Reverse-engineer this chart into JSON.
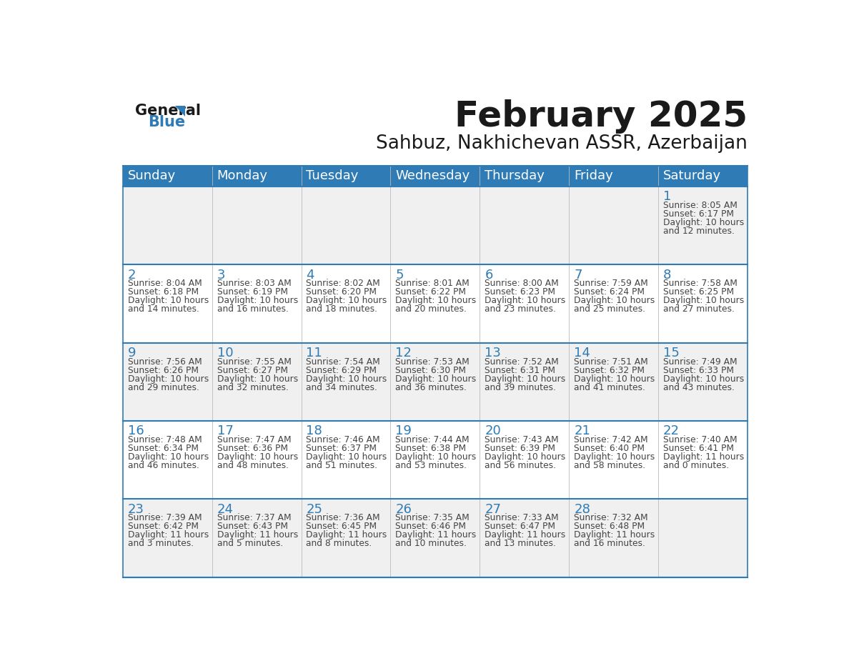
{
  "title": "February 2025",
  "subtitle": "Sahbuz, Nakhichevan ASSR, Azerbaijan",
  "header_bg_color": "#2E7BB5",
  "header_text_color": "#FFFFFF",
  "cell_bg_color": "#FFFFFF",
  "alt_cell_bg_color": "#F0F0F0",
  "day_number_color": "#2E7BB5",
  "text_color": "#444444",
  "border_color": "#2E7BB5",
  "days_of_week": [
    "Sunday",
    "Monday",
    "Tuesday",
    "Wednesday",
    "Thursday",
    "Friday",
    "Saturday"
  ],
  "calendar_data": [
    [
      {
        "day": null,
        "sunrise": null,
        "sunset": null,
        "daylight_line1": null,
        "daylight_line2": null
      },
      {
        "day": null,
        "sunrise": null,
        "sunset": null,
        "daylight_line1": null,
        "daylight_line2": null
      },
      {
        "day": null,
        "sunrise": null,
        "sunset": null,
        "daylight_line1": null,
        "daylight_line2": null
      },
      {
        "day": null,
        "sunrise": null,
        "sunset": null,
        "daylight_line1": null,
        "daylight_line2": null
      },
      {
        "day": null,
        "sunrise": null,
        "sunset": null,
        "daylight_line1": null,
        "daylight_line2": null
      },
      {
        "day": null,
        "sunrise": null,
        "sunset": null,
        "daylight_line1": null,
        "daylight_line2": null
      },
      {
        "day": 1,
        "sunrise": "8:05 AM",
        "sunset": "6:17 PM",
        "daylight_line1": "Daylight: 10 hours",
        "daylight_line2": "and 12 minutes."
      }
    ],
    [
      {
        "day": 2,
        "sunrise": "8:04 AM",
        "sunset": "6:18 PM",
        "daylight_line1": "Daylight: 10 hours",
        "daylight_line2": "and 14 minutes."
      },
      {
        "day": 3,
        "sunrise": "8:03 AM",
        "sunset": "6:19 PM",
        "daylight_line1": "Daylight: 10 hours",
        "daylight_line2": "and 16 minutes."
      },
      {
        "day": 4,
        "sunrise": "8:02 AM",
        "sunset": "6:20 PM",
        "daylight_line1": "Daylight: 10 hours",
        "daylight_line2": "and 18 minutes."
      },
      {
        "day": 5,
        "sunrise": "8:01 AM",
        "sunset": "6:22 PM",
        "daylight_line1": "Daylight: 10 hours",
        "daylight_line2": "and 20 minutes."
      },
      {
        "day": 6,
        "sunrise": "8:00 AM",
        "sunset": "6:23 PM",
        "daylight_line1": "Daylight: 10 hours",
        "daylight_line2": "and 23 minutes."
      },
      {
        "day": 7,
        "sunrise": "7:59 AM",
        "sunset": "6:24 PM",
        "daylight_line1": "Daylight: 10 hours",
        "daylight_line2": "and 25 minutes."
      },
      {
        "day": 8,
        "sunrise": "7:58 AM",
        "sunset": "6:25 PM",
        "daylight_line1": "Daylight: 10 hours",
        "daylight_line2": "and 27 minutes."
      }
    ],
    [
      {
        "day": 9,
        "sunrise": "7:56 AM",
        "sunset": "6:26 PM",
        "daylight_line1": "Daylight: 10 hours",
        "daylight_line2": "and 29 minutes."
      },
      {
        "day": 10,
        "sunrise": "7:55 AM",
        "sunset": "6:27 PM",
        "daylight_line1": "Daylight: 10 hours",
        "daylight_line2": "and 32 minutes."
      },
      {
        "day": 11,
        "sunrise": "7:54 AM",
        "sunset": "6:29 PM",
        "daylight_line1": "Daylight: 10 hours",
        "daylight_line2": "and 34 minutes."
      },
      {
        "day": 12,
        "sunrise": "7:53 AM",
        "sunset": "6:30 PM",
        "daylight_line1": "Daylight: 10 hours",
        "daylight_line2": "and 36 minutes."
      },
      {
        "day": 13,
        "sunrise": "7:52 AM",
        "sunset": "6:31 PM",
        "daylight_line1": "Daylight: 10 hours",
        "daylight_line2": "and 39 minutes."
      },
      {
        "day": 14,
        "sunrise": "7:51 AM",
        "sunset": "6:32 PM",
        "daylight_line1": "Daylight: 10 hours",
        "daylight_line2": "and 41 minutes."
      },
      {
        "day": 15,
        "sunrise": "7:49 AM",
        "sunset": "6:33 PM",
        "daylight_line1": "Daylight: 10 hours",
        "daylight_line2": "and 43 minutes."
      }
    ],
    [
      {
        "day": 16,
        "sunrise": "7:48 AM",
        "sunset": "6:34 PM",
        "daylight_line1": "Daylight: 10 hours",
        "daylight_line2": "and 46 minutes."
      },
      {
        "day": 17,
        "sunrise": "7:47 AM",
        "sunset": "6:36 PM",
        "daylight_line1": "Daylight: 10 hours",
        "daylight_line2": "and 48 minutes."
      },
      {
        "day": 18,
        "sunrise": "7:46 AM",
        "sunset": "6:37 PM",
        "daylight_line1": "Daylight: 10 hours",
        "daylight_line2": "and 51 minutes."
      },
      {
        "day": 19,
        "sunrise": "7:44 AM",
        "sunset": "6:38 PM",
        "daylight_line1": "Daylight: 10 hours",
        "daylight_line2": "and 53 minutes."
      },
      {
        "day": 20,
        "sunrise": "7:43 AM",
        "sunset": "6:39 PM",
        "daylight_line1": "Daylight: 10 hours",
        "daylight_line2": "and 56 minutes."
      },
      {
        "day": 21,
        "sunrise": "7:42 AM",
        "sunset": "6:40 PM",
        "daylight_line1": "Daylight: 10 hours",
        "daylight_line2": "and 58 minutes."
      },
      {
        "day": 22,
        "sunrise": "7:40 AM",
        "sunset": "6:41 PM",
        "daylight_line1": "Daylight: 11 hours",
        "daylight_line2": "and 0 minutes."
      }
    ],
    [
      {
        "day": 23,
        "sunrise": "7:39 AM",
        "sunset": "6:42 PM",
        "daylight_line1": "Daylight: 11 hours",
        "daylight_line2": "and 3 minutes."
      },
      {
        "day": 24,
        "sunrise": "7:37 AM",
        "sunset": "6:43 PM",
        "daylight_line1": "Daylight: 11 hours",
        "daylight_line2": "and 5 minutes."
      },
      {
        "day": 25,
        "sunrise": "7:36 AM",
        "sunset": "6:45 PM",
        "daylight_line1": "Daylight: 11 hours",
        "daylight_line2": "and 8 minutes."
      },
      {
        "day": 26,
        "sunrise": "7:35 AM",
        "sunset": "6:46 PM",
        "daylight_line1": "Daylight: 11 hours",
        "daylight_line2": "and 10 minutes."
      },
      {
        "day": 27,
        "sunrise": "7:33 AM",
        "sunset": "6:47 PM",
        "daylight_line1": "Daylight: 11 hours",
        "daylight_line2": "and 13 minutes."
      },
      {
        "day": 28,
        "sunrise": "7:32 AM",
        "sunset": "6:48 PM",
        "daylight_line1": "Daylight: 11 hours",
        "daylight_line2": "and 16 minutes."
      },
      {
        "day": null,
        "sunrise": null,
        "sunset": null,
        "daylight_line1": null,
        "daylight_line2": null
      }
    ]
  ],
  "logo_text_general": "General",
  "logo_text_blue": "Blue",
  "logo_color_general": "#1a1a1a",
  "logo_color_blue": "#2E7BB5",
  "logo_triangle_color": "#2E7BB5"
}
